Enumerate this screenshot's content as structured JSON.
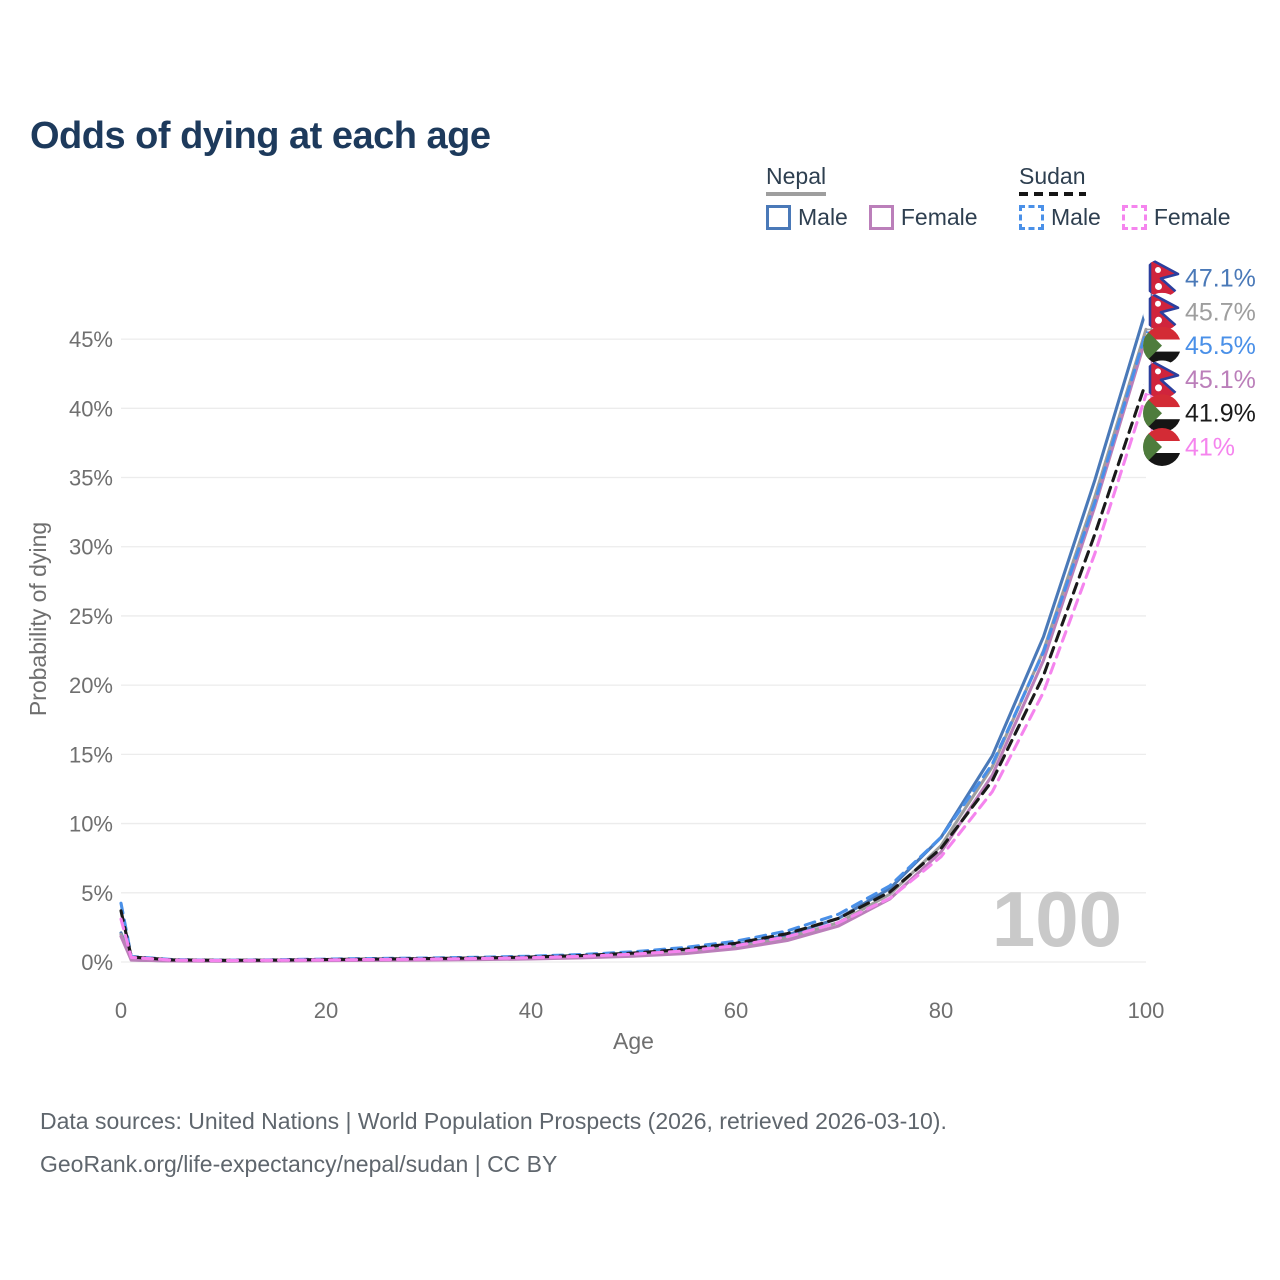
{
  "title": "Odds of dying at each age",
  "legend": {
    "groups": [
      {
        "label": "Nepal",
        "line_style": "solid",
        "underline_color": "#9e9e9e",
        "items": [
          {
            "label": "Male",
            "color": "#4a79b8",
            "style": "solid"
          },
          {
            "label": "Female",
            "color": "#bb7fba",
            "style": "solid"
          }
        ]
      },
      {
        "label": "Sudan",
        "line_style": "dashed",
        "underline_color": "#151515",
        "items": [
          {
            "label": "Male",
            "color": "#4a90e8",
            "style": "dashed"
          },
          {
            "label": "Female",
            "color": "#f584ee",
            "style": "dashed"
          }
        ]
      }
    ]
  },
  "chart_data": {
    "type": "line",
    "title": "Odds of dying at each age",
    "xlabel": "Age",
    "ylabel": "Probability of dying",
    "xlim": [
      0,
      100
    ],
    "ylim": [
      0,
      48
    ],
    "x_ticks": [
      0,
      20,
      40,
      60,
      80,
      100
    ],
    "y_tick_values": [
      0,
      5,
      10,
      15,
      20,
      25,
      30,
      35,
      40,
      45
    ],
    "y_tick_suffix": "%",
    "grid": true,
    "legend_position": "top-right",
    "watermark": "100",
    "x": [
      0,
      1,
      5,
      10,
      15,
      20,
      25,
      30,
      35,
      40,
      45,
      50,
      55,
      60,
      65,
      70,
      75,
      80,
      85,
      90,
      95,
      100
    ],
    "series": [
      {
        "name": "Nepal Male",
        "country": "nepal",
        "sex": "male",
        "color": "#4a79b8",
        "dashed": false,
        "end_label": "47.1%",
        "label_color": "#4a79b8",
        "values": [
          2.1,
          0.16,
          0.08,
          0.07,
          0.1,
          0.14,
          0.17,
          0.2,
          0.24,
          0.3,
          0.41,
          0.57,
          0.82,
          1.25,
          1.95,
          3.15,
          5.3,
          9.0,
          14.9,
          23.5,
          34.8,
          47.1
        ]
      },
      {
        "name": "Nepal",
        "country": "nepal",
        "sex": "all",
        "color": "#9e9e9e",
        "dashed": false,
        "end_label": "45.7%",
        "label_color": "#9e9e9e",
        "values": [
          2.0,
          0.15,
          0.075,
          0.065,
          0.09,
          0.12,
          0.14,
          0.17,
          0.2,
          0.26,
          0.35,
          0.49,
          0.71,
          1.1,
          1.75,
          2.85,
          4.9,
          8.4,
          14.1,
          22.5,
          33.6,
          45.7
        ]
      },
      {
        "name": "Sudan Male",
        "country": "sudan",
        "sex": "male",
        "color": "#4a90e8",
        "dashed": true,
        "end_label": "45.5%",
        "label_color": "#4a90e8",
        "values": [
          4.25,
          0.4,
          0.17,
          0.13,
          0.16,
          0.21,
          0.25,
          0.29,
          0.34,
          0.42,
          0.54,
          0.74,
          1.05,
          1.5,
          2.25,
          3.45,
          5.5,
          9.0,
          14.3,
          22.4,
          33.2,
          45.5
        ]
      },
      {
        "name": "Nepal Female",
        "country": "nepal",
        "sex": "female",
        "color": "#bb7fba",
        "dashed": false,
        "end_label": "45.1%",
        "label_color": "#bb7fba",
        "values": [
          1.85,
          0.14,
          0.07,
          0.06,
          0.08,
          0.1,
          0.12,
          0.14,
          0.17,
          0.22,
          0.3,
          0.42,
          0.61,
          0.96,
          1.55,
          2.6,
          4.55,
          7.95,
          13.5,
          21.8,
          32.9,
          45.1
        ]
      },
      {
        "name": "Sudan",
        "country": "sudan",
        "sex": "all",
        "color": "#1a1a1a",
        "dashed": true,
        "end_label": "41.9%",
        "label_color": "#1a1a1a",
        "values": [
          3.7,
          0.36,
          0.15,
          0.12,
          0.14,
          0.18,
          0.21,
          0.25,
          0.29,
          0.36,
          0.47,
          0.64,
          0.92,
          1.35,
          2.05,
          3.15,
          5.05,
          8.2,
          13.1,
          20.7,
          30.9,
          41.9
        ]
      },
      {
        "name": "Sudan Female",
        "country": "sudan",
        "sex": "female",
        "color": "#f584ee",
        "dashed": true,
        "end_label": "41%",
        "label_color": "#f584ee",
        "values": [
          3.1,
          0.33,
          0.14,
          0.11,
          0.13,
          0.15,
          0.18,
          0.21,
          0.25,
          0.31,
          0.41,
          0.56,
          0.8,
          1.18,
          1.82,
          2.85,
          4.6,
          7.6,
          12.3,
          19.5,
          29.5,
          41.0
        ]
      }
    ]
  },
  "colors": {
    "title": "#1d3a5c",
    "axis_text": "#6f6f6f",
    "grid": "#ececec",
    "watermark": "#c9c9c9",
    "nepal_crimson": "#d0243c",
    "nepal_blue": "#2b3f9e",
    "sudan_red": "#d32b35",
    "sudan_green": "#4e7c3c",
    "sudan_black": "#151515"
  },
  "footer": {
    "line1": "Data sources: United Nations | World Population Prospects (2026, retrieved 2026-03-10).",
    "line2": "GeoRank.org/life-expectancy/nepal/sudan | CC BY"
  }
}
